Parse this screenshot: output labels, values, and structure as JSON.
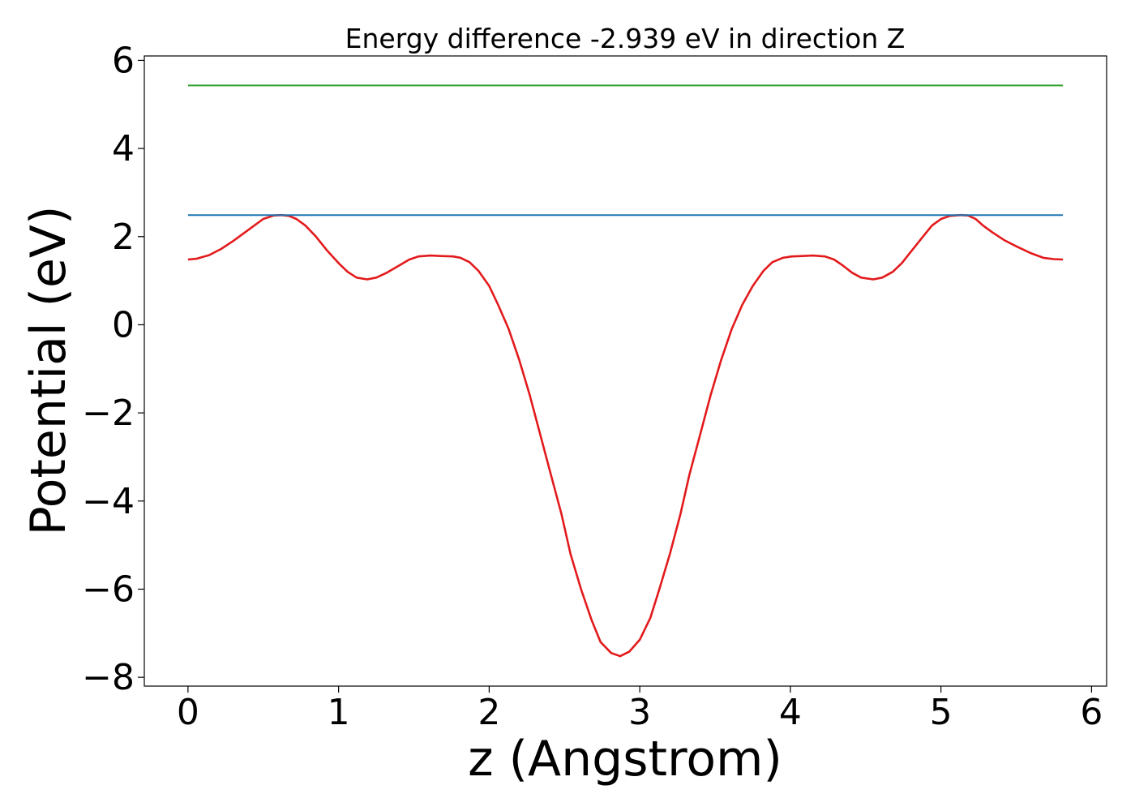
{
  "chart_data": {
    "type": "line",
    "title": "Energy difference -2.939 eV in direction Z",
    "xlabel": "z (Angstrom)",
    "ylabel": "Potential (eV)",
    "xlim": [
      -0.29,
      6.1
    ],
    "ylim": [
      -8.2,
      6.1
    ],
    "x_ticks": [
      0,
      1,
      2,
      3,
      4,
      5,
      6
    ],
    "x_tick_labels": [
      "0",
      "1",
      "2",
      "3",
      "4",
      "5",
      "6"
    ],
    "y_ticks": [
      -8,
      -6,
      -4,
      -2,
      0,
      2,
      4,
      6
    ],
    "y_tick_labels": [
      "−8",
      "−6",
      "−4",
      "−2",
      "0",
      "2",
      "4",
      "6"
    ],
    "grid": false,
    "colors": {
      "potential": "#e31a1c",
      "level_1": "#1f77b4",
      "level_2": "#2ca02c"
    },
    "series": [
      {
        "kind": "curve",
        "x": [
          0,
          0.06,
          0.14,
          0.22,
          0.3,
          0.4,
          0.5,
          0.57,
          0.62,
          0.67,
          0.72,
          0.78,
          0.85,
          0.92,
          1.0,
          1.06,
          1.12,
          1.19,
          1.25,
          1.32,
          1.4,
          1.47,
          1.53,
          1.61,
          1.68,
          1.76,
          1.81,
          1.87,
          1.93,
          2.0,
          2.06,
          2.13,
          2.2,
          2.27,
          2.34,
          2.41,
          2.48,
          2.54,
          2.61,
          2.68,
          2.74,
          2.81,
          2.87,
          2.93,
          3.0,
          3.07,
          3.13,
          3.2,
          3.27,
          3.33,
          3.4,
          3.47,
          3.54,
          3.61,
          3.68,
          3.75,
          3.82,
          3.88,
          3.95,
          4.01,
          4.08,
          4.15,
          4.23,
          4.29,
          4.35,
          4.41,
          4.47,
          4.55,
          4.61,
          4.68,
          4.74,
          4.81,
          4.88,
          4.94,
          5.0,
          5.06,
          5.13,
          5.18,
          5.23,
          5.28,
          5.34,
          5.42,
          5.5,
          5.6,
          5.68,
          5.75,
          5.81
        ],
        "y": [
          1.48,
          1.5,
          1.58,
          1.72,
          1.9,
          2.15,
          2.4,
          2.48,
          2.49,
          2.47,
          2.4,
          2.25,
          2.0,
          1.7,
          1.4,
          1.2,
          1.07,
          1.03,
          1.07,
          1.18,
          1.34,
          1.48,
          1.55,
          1.57,
          1.56,
          1.55,
          1.52,
          1.42,
          1.22,
          0.88,
          0.45,
          -0.1,
          -0.8,
          -1.6,
          -2.5,
          -3.4,
          -4.3,
          -5.2,
          -6.0,
          -6.7,
          -7.2,
          -7.45,
          -7.52,
          -7.42,
          -7.15,
          -6.65,
          -6.0,
          -5.2,
          -4.3,
          -3.4,
          -2.5,
          -1.6,
          -0.8,
          -0.1,
          0.45,
          0.88,
          1.22,
          1.42,
          1.52,
          1.55,
          1.56,
          1.57,
          1.55,
          1.48,
          1.34,
          1.18,
          1.07,
          1.03,
          1.07,
          1.2,
          1.4,
          1.7,
          2.0,
          2.25,
          2.4,
          2.47,
          2.49,
          2.48,
          2.4,
          2.25,
          2.1,
          1.92,
          1.78,
          1.62,
          1.52,
          1.49,
          1.48
        ]
      },
      {
        "kind": "level",
        "x": [
          0,
          5.81
        ],
        "y": [
          2.49,
          2.49
        ]
      },
      {
        "kind": "level",
        "x": [
          0,
          5.81
        ],
        "y": [
          5.43,
          5.43
        ]
      }
    ]
  }
}
